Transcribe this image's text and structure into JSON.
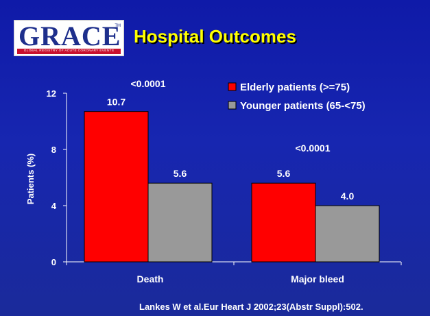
{
  "logo": {
    "name": "GRACE",
    "tm": "TM",
    "tagline": "GLOBAL REGISTRY OF ACUTE CORONARY EVENTS"
  },
  "title": "Hospital Outcomes",
  "citation": "Lankes W et al.Eur Heart J 2002;23(Abstr Suppl):502.",
  "colors": {
    "elderly": "#ff0000",
    "younger": "#999999",
    "text": "#ffffff",
    "title": "#ffff00",
    "background": "#1726b0"
  },
  "chart_data": {
    "type": "bar",
    "categories": [
      "Death",
      "Major bleed"
    ],
    "series": [
      {
        "name": "Elderly patients (>=75)",
        "values": [
          10.7,
          5.6
        ],
        "labels": [
          "10.7",
          "5.6"
        ]
      },
      {
        "name": "Younger patients (65-<75)",
        "values": [
          5.6,
          4.0
        ],
        "labels": [
          "5.6",
          "4.0"
        ]
      }
    ],
    "ylabel": "Patients (%)",
    "xlabel": "",
    "ylim": [
      0,
      12
    ],
    "yticks": [
      "0",
      "4",
      "8",
      "12"
    ],
    "annotations": [
      "<0.0001",
      "<0.0001"
    ],
    "legend_position": "top-right",
    "grid": false
  }
}
